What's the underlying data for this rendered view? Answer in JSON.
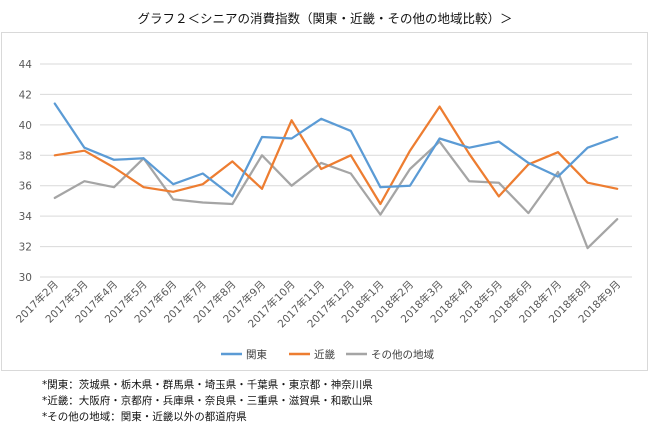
{
  "title": "グラフ２＜シニアの消費指数（関東・近畿・その他の地域比較）＞",
  "notes": [
    "*関東：茨城県・栃木県・群馬県・埼玉県・千葉県・東京都・神奈川県",
    "*近畿：大阪府・京都府・兵庫県・奈良県・三重県・滋賀県・和歌山県",
    "*その他の地域：関東・近畿以外の都道府県"
  ],
  "chart_data": {
    "type": "line",
    "title": "",
    "xlabel": "",
    "ylabel": "",
    "ylim": [
      30,
      44
    ],
    "yticks": [
      "30",
      "32",
      "34",
      "36",
      "38",
      "40",
      "42",
      "44"
    ],
    "grid": true,
    "legend_position": "bottom",
    "categories": [
      "2017年2月",
      "2017年3月",
      "2017年4月",
      "2017年5月",
      "2017年6月",
      "2017年7月",
      "2017年8月",
      "2017年9月",
      "2017年10月",
      "2017年11月",
      "2017年12月",
      "2018年1月",
      "2018年2月",
      "2018年3月",
      "2018年4月",
      "2018年5月",
      "2018年6月",
      "2018年7月",
      "2018年8月",
      "2018年9月"
    ],
    "series": [
      {
        "name": "関東",
        "color": "#5b9bd5",
        "values": [
          41.4,
          38.5,
          37.7,
          37.8,
          36.1,
          36.8,
          35.3,
          39.2,
          39.1,
          40.4,
          39.6,
          35.9,
          36.0,
          39.1,
          38.5,
          38.9,
          37.5,
          36.6,
          38.5,
          39.2
        ]
      },
      {
        "name": "近畿",
        "color": "#ed7d31",
        "values": [
          38.0,
          38.3,
          37.2,
          35.9,
          35.6,
          36.1,
          37.6,
          35.8,
          40.3,
          37.1,
          38.0,
          34.8,
          38.3,
          41.2,
          38.1,
          35.3,
          37.4,
          38.2,
          36.2,
          35.8
        ]
      },
      {
        "name": "その他の地域",
        "color": "#a5a5a5",
        "values": [
          35.2,
          36.3,
          35.9,
          37.8,
          35.1,
          34.9,
          34.8,
          38.0,
          36.0,
          37.5,
          36.8,
          34.1,
          37.1,
          38.9,
          36.3,
          36.2,
          34.2,
          36.9,
          31.9,
          33.8
        ]
      }
    ]
  }
}
